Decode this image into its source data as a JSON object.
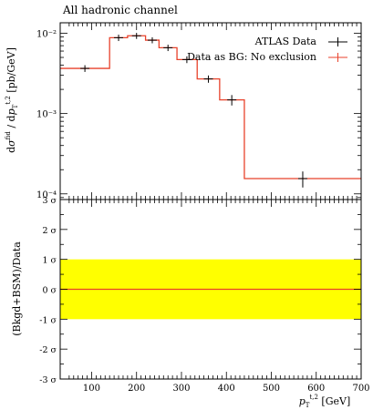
{
  "title": "All hadronic channel",
  "colors": {
    "data": "#000000",
    "model": "#e8422b",
    "band": "#ffff00"
  },
  "chart_data": [
    {
      "type": "line",
      "panel": "main",
      "title": "All hadronic channel",
      "xlabel": "p_T^{t,2} [GeV]",
      "ylabel": "dσ^fid / dp_T^{t,2} [pb/GeV]",
      "xlim": [
        30,
        700
      ],
      "ylim": [
        8.5e-05,
        0.0135
      ],
      "yscale": "log",
      "ytick_labels": [
        "10⁻⁴",
        "10⁻³",
        "10⁻²"
      ],
      "legend": [
        "ATLAS Data",
        "Data as BG: No exclusion"
      ],
      "bins": [
        {
          "lo": 30,
          "hi": 140,
          "y": 0.00365,
          "err": 0.00035,
          "xc": 85
        },
        {
          "lo": 140,
          "hi": 180,
          "y": 0.0088,
          "err": 0.0008,
          "xc": 160
        },
        {
          "lo": 180,
          "hi": 220,
          "y": 0.0093,
          "err": 0.0008,
          "xc": 200
        },
        {
          "lo": 220,
          "hi": 250,
          "y": 0.0082,
          "err": 0.0007,
          "xc": 235
        },
        {
          "lo": 250,
          "hi": 290,
          "y": 0.0066,
          "err": 0.0006,
          "xc": 270
        },
        {
          "lo": 290,
          "hi": 335,
          "y": 0.0047,
          "err": 0.00045,
          "xc": 312
        },
        {
          "lo": 335,
          "hi": 385,
          "y": 0.0027,
          "err": 0.00028,
          "xc": 360
        },
        {
          "lo": 385,
          "hi": 440,
          "y": 0.00148,
          "err": 0.00022,
          "xc": 412
        },
        {
          "lo": 440,
          "hi": 700,
          "y": 0.000155,
          "err": 3.5e-05,
          "xc": 570
        }
      ]
    },
    {
      "type": "line",
      "panel": "ratio",
      "xlabel": "p_T^{t,2} [GeV]",
      "ylabel": "(Bkgd+BSM)/Data",
      "xlim": [
        30,
        700
      ],
      "ylim": [
        -3,
        3
      ],
      "ytick_labels": [
        "-3 σ",
        "-2 σ",
        "-1 σ",
        "0 σ",
        "1 σ",
        "2 σ",
        "3 σ"
      ],
      "xticks": [
        100,
        200,
        300,
        400,
        500,
        600,
        700
      ],
      "band": [
        -1,
        1
      ],
      "line_value": 0
    }
  ]
}
